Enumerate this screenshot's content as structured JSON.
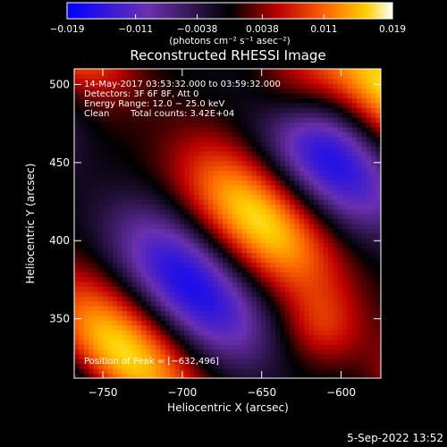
{
  "chart_data": {
    "type": "heatmap",
    "title": "Reconstructed RHESSI Image",
    "xlabel": "Heliocentric X (arcsec)",
    "ylabel": "Heliocentric Y (arcsec)",
    "xlim": [
      -768,
      -575
    ],
    "ylim": [
      312,
      510
    ],
    "x_ticks": [
      -750,
      -700,
      -650,
      -600
    ],
    "x_tick_labels": [
      "−750",
      "−700",
      "−650",
      "−600"
    ],
    "y_ticks": [
      350,
      400,
      450,
      500
    ],
    "y_tick_labels": [
      "350",
      "400",
      "450",
      "500"
    ],
    "colorbar": {
      "range": [
        -0.019,
        0.019
      ],
      "ticks": [
        -0.019,
        -0.011,
        -0.0038,
        0.0038,
        0.011,
        0.019
      ],
      "tick_labels": [
        "−0.019",
        "−0.011",
        "−0.0038",
        "0.0038",
        "0.011",
        "0.019"
      ],
      "unit_label": "(photons cm⁻² s⁻¹ asec⁻²)"
    },
    "annotations": [
      "14-May-2017 03:53:32.000 to 03:59:32.000",
      "Detectors: 3F 6F 8F, Att 0",
      "Energy Range: 12.0 − 25.0 keV",
      "Clean",
      "Total counts: 3.42E+04"
    ],
    "peak_label": "Position of Peak = [−632,496]",
    "peak": [
      -632,
      496
    ],
    "timestamp": "5-Sep-2022 13:52"
  }
}
